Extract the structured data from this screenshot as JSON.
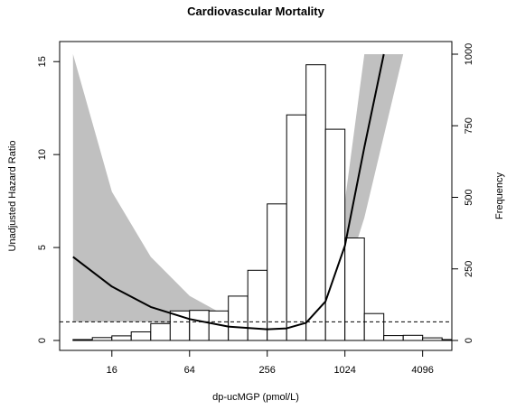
{
  "chart_data": {
    "type": "line",
    "title": "Cardiovascular Mortality",
    "xlabel": "dp-ucMGP (pmol/L)",
    "ylabel_left": "Unadjusted Hazard Ratio",
    "ylabel_right": "Frequency",
    "x_scale": "log2",
    "xlim": [
      6.3,
      6900
    ],
    "x_ticks": [
      16,
      64,
      256,
      1024,
      4096
    ],
    "x_tick_labels": [
      "16",
      "64",
      "256",
      "1024",
      "4096"
    ],
    "ylim_left": [
      0,
      15.4
    ],
    "y_ticks_left": [
      0,
      5,
      10,
      15
    ],
    "y_tick_labels_left": [
      "0",
      "5",
      "10",
      "15"
    ],
    "ylim_right": [
      0,
      1000
    ],
    "y_ticks_right": [
      0,
      250,
      500,
      750,
      1000
    ],
    "y_tick_labels_right": [
      "0",
      "250",
      "500",
      "750",
      "1000"
    ],
    "reference_line": {
      "y": 1,
      "style": "dashed"
    },
    "histogram": {
      "bin_edges": [
        8,
        11.3,
        16,
        22.6,
        32,
        45.3,
        64,
        90.5,
        128,
        181,
        256,
        362,
        512,
        724,
        1024,
        1448,
        2048,
        2896,
        4096,
        5793
      ],
      "counts": [
        3,
        10,
        16,
        30,
        59,
        103,
        105,
        103,
        155,
        245,
        477,
        788,
        963,
        738,
        358,
        94,
        17,
        18,
        9,
        3
      ]
    },
    "hazard_curve": {
      "x": [
        8,
        16,
        32,
        64,
        128,
        256,
        362,
        512,
        724,
        1024,
        1448,
        2048
      ],
      "y": [
        4.5,
        2.9,
        1.8,
        1.15,
        0.75,
        0.6,
        0.65,
        0.95,
        2.1,
        5.1,
        10.4,
        15.4
      ]
    },
    "confidence_band": {
      "x": [
        8,
        16,
        32,
        64,
        128,
        256,
        362,
        512,
        724,
        1024,
        1448,
        2048,
        2896
      ],
      "lower": [
        1.0,
        1.0,
        1.0,
        0.85,
        0.6,
        0.5,
        0.55,
        0.75,
        1.5,
        3.3,
        6.6,
        11.0,
        15.4
      ],
      "upper": [
        15.4,
        8.0,
        4.5,
        2.4,
        1.25,
        0.8,
        0.85,
        1.2,
        2.9,
        7.5,
        15.4,
        15.4,
        15.4
      ]
    },
    "band_color": "#c0c0c0",
    "bar_fill": "#ffffff",
    "line_color": "#000000",
    "grid": false
  }
}
